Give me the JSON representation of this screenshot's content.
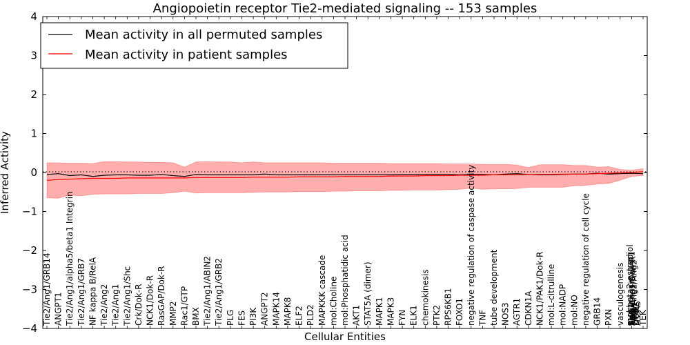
{
  "chart_data": {
    "type": "line",
    "title": "Angiopoietin receptor Tie2-mediated signaling -- 153 samples",
    "xlabel": "Cellular Entities",
    "ylabel": "Inferred Activity",
    "ylim": [
      -4,
      4
    ],
    "yticks": [
      "−4",
      "−3",
      "−2",
      "−1",
      "0",
      "1",
      "2",
      "3",
      "4"
    ],
    "grid": false,
    "legend_position": "top-left",
    "colors": {
      "permuted": "#000000",
      "patient": "#ff0000",
      "band": "#ff6b6b"
    },
    "series": [
      {
        "name": "Mean activity in all permuted samples",
        "values": [
          -0.05,
          -0.03,
          -0.08,
          -0.06,
          -0.1,
          -0.07,
          -0.06,
          -0.06,
          -0.07,
          -0.07,
          -0.05,
          -0.08,
          -0.1,
          -0.05,
          -0.06,
          -0.06,
          -0.06,
          -0.06,
          -0.06,
          -0.04,
          -0.06,
          -0.06,
          -0.06,
          -0.06,
          -0.06,
          -0.06,
          -0.06,
          -0.06,
          -0.06,
          -0.06,
          -0.06,
          -0.05,
          -0.05,
          -0.05,
          -0.05,
          -0.05,
          -0.06,
          -0.05,
          -0.05,
          -0.06,
          -0.04,
          -0.03,
          -0.05,
          -0.06,
          -0.06,
          -0.05,
          -0.04,
          -0.04,
          -0.02,
          -0.04,
          -0.03,
          -0.02,
          -0.03
        ]
      },
      {
        "name": "Mean activity in patient samples",
        "values": [
          -0.2,
          -0.18,
          -0.17,
          -0.16,
          -0.15,
          -0.15,
          -0.15,
          -0.14,
          -0.14,
          -0.14,
          -0.14,
          -0.14,
          -0.14,
          -0.13,
          -0.13,
          -0.13,
          -0.13,
          -0.13,
          -0.12,
          -0.12,
          -0.12,
          -0.12,
          -0.11,
          -0.11,
          -0.11,
          -0.11,
          -0.1,
          -0.1,
          -0.1,
          -0.1,
          -0.09,
          -0.09,
          -0.09,
          -0.08,
          -0.08,
          -0.08,
          -0.07,
          -0.07,
          -0.07,
          -0.06,
          -0.06,
          -0.06,
          -0.05,
          -0.05,
          -0.05,
          -0.04,
          -0.04,
          -0.04,
          -0.03,
          -0.02,
          -0.01,
          0.0,
          0.02
        ],
        "band_upper": [
          0.25,
          0.25,
          0.24,
          0.24,
          0.23,
          0.28,
          0.28,
          0.27,
          0.27,
          0.26,
          0.26,
          0.25,
          0.14,
          0.27,
          0.28,
          0.27,
          0.27,
          0.25,
          0.27,
          0.25,
          0.25,
          0.25,
          0.25,
          0.25,
          0.25,
          0.24,
          0.24,
          0.24,
          0.24,
          0.24,
          0.23,
          0.23,
          0.23,
          0.23,
          0.23,
          0.22,
          0.22,
          0.22,
          0.21,
          0.21,
          0.21,
          0.19,
          0.13,
          0.2,
          0.2,
          0.2,
          0.18,
          0.18,
          0.14,
          0.15,
          0.08,
          0.06,
          0.1
        ],
        "band_lower": [
          -0.65,
          -0.66,
          -0.58,
          -0.6,
          -0.56,
          -0.55,
          -0.55,
          -0.55,
          -0.54,
          -0.54,
          -0.54,
          -0.52,
          -0.48,
          -0.53,
          -0.52,
          -0.52,
          -0.52,
          -0.52,
          -0.51,
          -0.5,
          -0.5,
          -0.5,
          -0.49,
          -0.49,
          -0.49,
          -0.48,
          -0.48,
          -0.47,
          -0.47,
          -0.47,
          -0.46,
          -0.46,
          -0.45,
          -0.45,
          -0.45,
          -0.44,
          -0.43,
          -0.4,
          -0.43,
          -0.42,
          -0.42,
          -0.41,
          -0.38,
          -0.38,
          -0.38,
          -0.38,
          -0.34,
          -0.33,
          -0.3,
          -0.28,
          -0.2,
          -0.1,
          -0.08
        ]
      }
    ],
    "categories": [
      "Tie2/Ang1/GRB14",
      "ANGPT1",
      "Tie2/Ang1/alpha5/beta1 Integrin",
      "Tie2/Ang1/GRB7",
      "NF kappa B/RelA",
      "Tie2/Ang2",
      "Tie2/Ang1",
      "Tie2/Ang1/Shc",
      "Crk/Dok-R",
      "NCK1/Dok-R",
      "RasGAP/Dok-R",
      "MMP2",
      "Rac1/GTP",
      "BMX",
      "Tie2/Ang1/ABIN2",
      "Tie2/Ang1/GRB2",
      "PLG",
      "FES",
      "PI3K",
      "ANGPT2",
      "MAPK14",
      "MAPK8",
      "ELF2",
      "PLD2",
      "MAPKKK cascade",
      "mol:Choline",
      "mol:Phosphatidic acid",
      "AKT1",
      "STAT5A (dimer)",
      "MAPK1",
      "MAPK3",
      "FYN",
      "ELK1",
      "chemokinesis",
      "PTK2",
      "RPS6KB1",
      "FOXO1",
      "negative regulation of caspase activity",
      "TNF",
      "tube development",
      "NOS3",
      "AGTR1",
      "CDKN1A",
      "NCK1/PAK1/Dok-R",
      "mol:L-citrulline",
      "mol:NADP",
      "mol:NO",
      "negative regulation of cell cycle",
      "GRB14",
      "PXN",
      "vasculogenesis",
      "Angiotensin II/AT1",
      "TEK"
    ],
    "tail_labels": [
      "mol:beta2-estradiol",
      "SHC1",
      "Tie2/Ang1/Dok-R",
      "Tie2/Ang2/Ang2",
      "GRB7",
      "DOK2",
      "ITGA5"
    ]
  }
}
